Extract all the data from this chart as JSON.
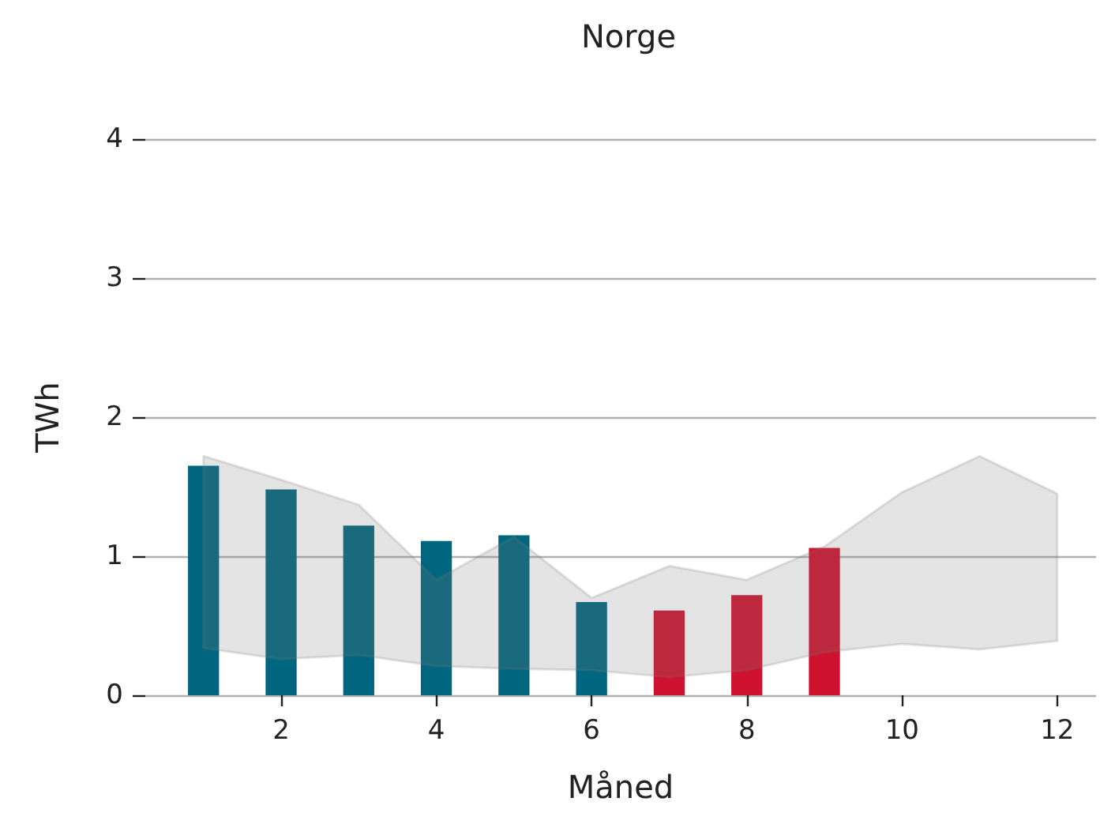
{
  "chart_data": {
    "type": "bar",
    "title": "Norge",
    "xlabel": "Måned",
    "ylabel": "TWh",
    "series": [
      {
        "x": [
          1,
          2,
          3,
          4,
          5,
          6,
          7,
          8,
          9
        ],
        "values": [
          1.65,
          1.48,
          1.22,
          1.11,
          1.15,
          0.67,
          0.61,
          0.72,
          1.06
        ],
        "colors": [
          "#00667f",
          "#00667f",
          "#00667f",
          "#00667f",
          "#00667f",
          "#00667f",
          "#cf1230",
          "#cf1230",
          "#cf1230"
        ]
      },
      {
        "type": "area",
        "x": [
          1,
          2,
          3,
          4,
          5,
          6,
          7,
          8,
          9,
          10,
          11,
          12
        ],
        "values": [
          null,
          null,
          null,
          null,
          null,
          null,
          null,
          null,
          null,
          null,
          null,
          null
        ],
        "lower": [
          0.34,
          0.26,
          0.29,
          0.21,
          0.19,
          0.18,
          0.13,
          0.18,
          0.31,
          0.37,
          0.33,
          0.39
        ],
        "upper": [
          1.72,
          1.55,
          1.37,
          0.83,
          1.14,
          0.7,
          0.93,
          0.83,
          1.07,
          1.46,
          1.72,
          1.45
        ],
        "color": "#e3e3e3"
      }
    ],
    "xlim": [
      0.25,
      12.5
    ],
    "xticks": [
      2,
      4,
      6,
      8,
      10,
      12
    ],
    "ylim": [
      0,
      4
    ],
    "yticks": [
      0,
      1,
      2,
      3,
      4
    ],
    "grid": "y"
  }
}
